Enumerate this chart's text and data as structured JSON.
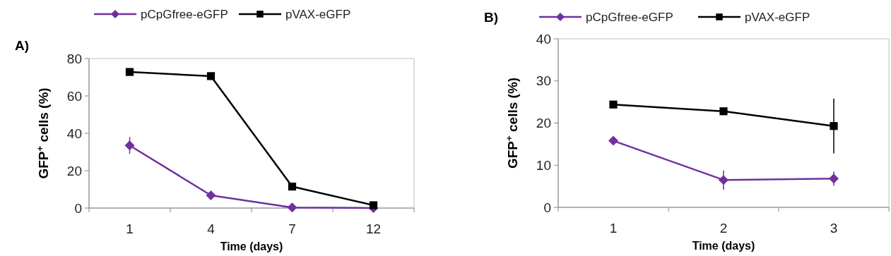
{
  "chart_data": [
    {
      "type": "line",
      "title": "A)",
      "xlabel": "Time (days)",
      "ylabel": "GFP$^{+}$ cells (%)",
      "categories": [
        "1",
        "4",
        "7",
        "12"
      ],
      "ylim": [
        0,
        80
      ],
      "yticks": [
        0,
        20,
        40,
        60,
        80
      ],
      "grid": false,
      "legend": "top",
      "series": [
        {
          "name": "pCpGfree-eGFP",
          "color": "#7030a0",
          "marker": "diamond",
          "values": [
            33.5,
            6.8,
            0.3,
            0
          ],
          "errors": [
            4.5,
            null,
            null,
            null
          ]
        },
        {
          "name": "pVAX-eGFP",
          "color": "#000000",
          "marker": "square",
          "values": [
            72.8,
            70.6,
            11.5,
            1.5
          ]
        }
      ]
    },
    {
      "type": "line",
      "title": "B)",
      "xlabel": "Time (days)",
      "ylabel": "GFP$^{+}$ cells (%)",
      "categories": [
        "1",
        "2",
        "3"
      ],
      "ylim": [
        0,
        40
      ],
      "yticks": [
        0,
        10,
        20,
        30,
        40
      ],
      "grid": false,
      "legend": "top",
      "series": [
        {
          "name": "pCpGfree-eGFP",
          "color": "#7030a0",
          "marker": "diamond",
          "values": [
            15.8,
            6.5,
            6.8
          ],
          "errors": [
            null,
            2.3,
            1.7
          ]
        },
        {
          "name": "pVAX-eGFP",
          "color": "#000000",
          "marker": "square",
          "values": [
            24.4,
            22.8,
            19.3
          ],
          "errors": [
            null,
            null,
            6.5
          ]
        }
      ]
    }
  ]
}
